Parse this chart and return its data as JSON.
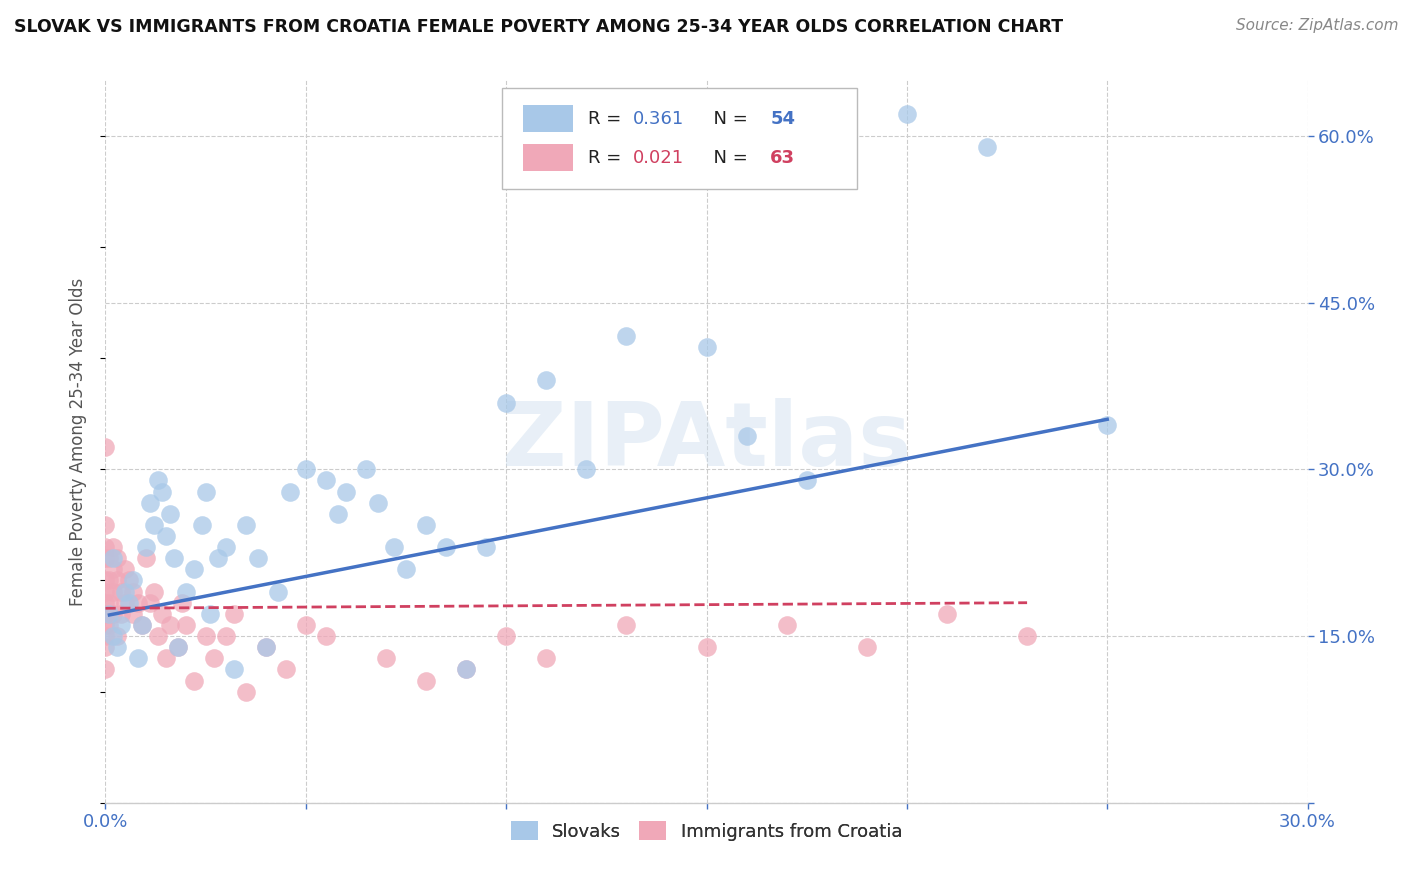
{
  "title": "SLOVAK VS IMMIGRANTS FROM CROATIA FEMALE POVERTY AMONG 25-34 YEAR OLDS CORRELATION CHART",
  "source": "Source: ZipAtlas.com",
  "ylabel": "Female Poverty Among 25-34 Year Olds",
  "watermark": "ZIPAtlas",
  "xlim": [
    0.0,
    0.3
  ],
  "ylim": [
    0.0,
    0.65
  ],
  "xticks": [
    0.0,
    0.05,
    0.1,
    0.15,
    0.2,
    0.25,
    0.3
  ],
  "xtick_labels": [
    "0.0%",
    "",
    "",
    "",
    "",
    "",
    "30.0%"
  ],
  "ytick_labels_right": [
    "",
    "15.0%",
    "30.0%",
    "45.0%",
    "60.0%"
  ],
  "yticks_right": [
    0.0,
    0.15,
    0.3,
    0.45,
    0.6
  ],
  "grid_color": "#cccccc",
  "background_color": "#ffffff",
  "slovaks_color": "#a8c8e8",
  "croatia_color": "#f0a8b8",
  "slovaks_line_color": "#4472c4",
  "croatia_line_color": "#d04060",
  "R_slovak": 0.361,
  "N_slovak": 54,
  "R_croatia": 0.021,
  "N_croatia": 63,
  "slovaks_x": [
    0.001,
    0.002,
    0.002,
    0.003,
    0.004,
    0.005,
    0.006,
    0.007,
    0.008,
    0.009,
    0.01,
    0.011,
    0.012,
    0.013,
    0.014,
    0.015,
    0.016,
    0.017,
    0.018,
    0.02,
    0.022,
    0.024,
    0.025,
    0.026,
    0.028,
    0.03,
    0.032,
    0.035,
    0.038,
    0.04,
    0.043,
    0.046,
    0.05,
    0.055,
    0.058,
    0.06,
    0.065,
    0.068,
    0.072,
    0.075,
    0.08,
    0.085,
    0.09,
    0.095,
    0.1,
    0.11,
    0.12,
    0.13,
    0.15,
    0.16,
    0.175,
    0.2,
    0.22,
    0.25
  ],
  "slovaks_y": [
    0.17,
    0.15,
    0.22,
    0.14,
    0.16,
    0.19,
    0.18,
    0.2,
    0.13,
    0.16,
    0.23,
    0.27,
    0.25,
    0.29,
    0.28,
    0.24,
    0.26,
    0.22,
    0.14,
    0.19,
    0.21,
    0.25,
    0.28,
    0.17,
    0.22,
    0.23,
    0.12,
    0.25,
    0.22,
    0.14,
    0.19,
    0.28,
    0.3,
    0.29,
    0.26,
    0.28,
    0.3,
    0.27,
    0.23,
    0.21,
    0.25,
    0.23,
    0.12,
    0.23,
    0.36,
    0.38,
    0.3,
    0.42,
    0.41,
    0.33,
    0.29,
    0.62,
    0.59,
    0.34
  ],
  "croatia_x": [
    0.0,
    0.0,
    0.0,
    0.0,
    0.0,
    0.0,
    0.0,
    0.0,
    0.0,
    0.0,
    0.0,
    0.0,
    0.001,
    0.001,
    0.001,
    0.001,
    0.002,
    0.002,
    0.002,
    0.002,
    0.003,
    0.003,
    0.003,
    0.004,
    0.004,
    0.005,
    0.005,
    0.006,
    0.007,
    0.007,
    0.008,
    0.009,
    0.01,
    0.011,
    0.012,
    0.013,
    0.014,
    0.015,
    0.016,
    0.018,
    0.019,
    0.02,
    0.022,
    0.025,
    0.027,
    0.03,
    0.032,
    0.035,
    0.04,
    0.045,
    0.05,
    0.055,
    0.07,
    0.08,
    0.09,
    0.1,
    0.11,
    0.13,
    0.15,
    0.17,
    0.19,
    0.21,
    0.23
  ],
  "croatia_y": [
    0.32,
    0.25,
    0.23,
    0.22,
    0.2,
    0.19,
    0.18,
    0.17,
    0.16,
    0.15,
    0.14,
    0.12,
    0.22,
    0.2,
    0.18,
    0.16,
    0.23,
    0.21,
    0.19,
    0.17,
    0.22,
    0.2,
    0.15,
    0.19,
    0.17,
    0.21,
    0.18,
    0.2,
    0.19,
    0.17,
    0.18,
    0.16,
    0.22,
    0.18,
    0.19,
    0.15,
    0.17,
    0.13,
    0.16,
    0.14,
    0.18,
    0.16,
    0.11,
    0.15,
    0.13,
    0.15,
    0.17,
    0.1,
    0.14,
    0.12,
    0.16,
    0.15,
    0.13,
    0.11,
    0.12,
    0.15,
    0.13,
    0.16,
    0.14,
    0.16,
    0.14,
    0.17,
    0.15
  ],
  "slovak_trendline_x": [
    0.001,
    0.25
  ],
  "slovak_trendline_y": [
    0.169,
    0.345
  ],
  "croatia_trendline_x": [
    0.0,
    0.23
  ],
  "croatia_trendline_y": [
    0.175,
    0.18
  ]
}
